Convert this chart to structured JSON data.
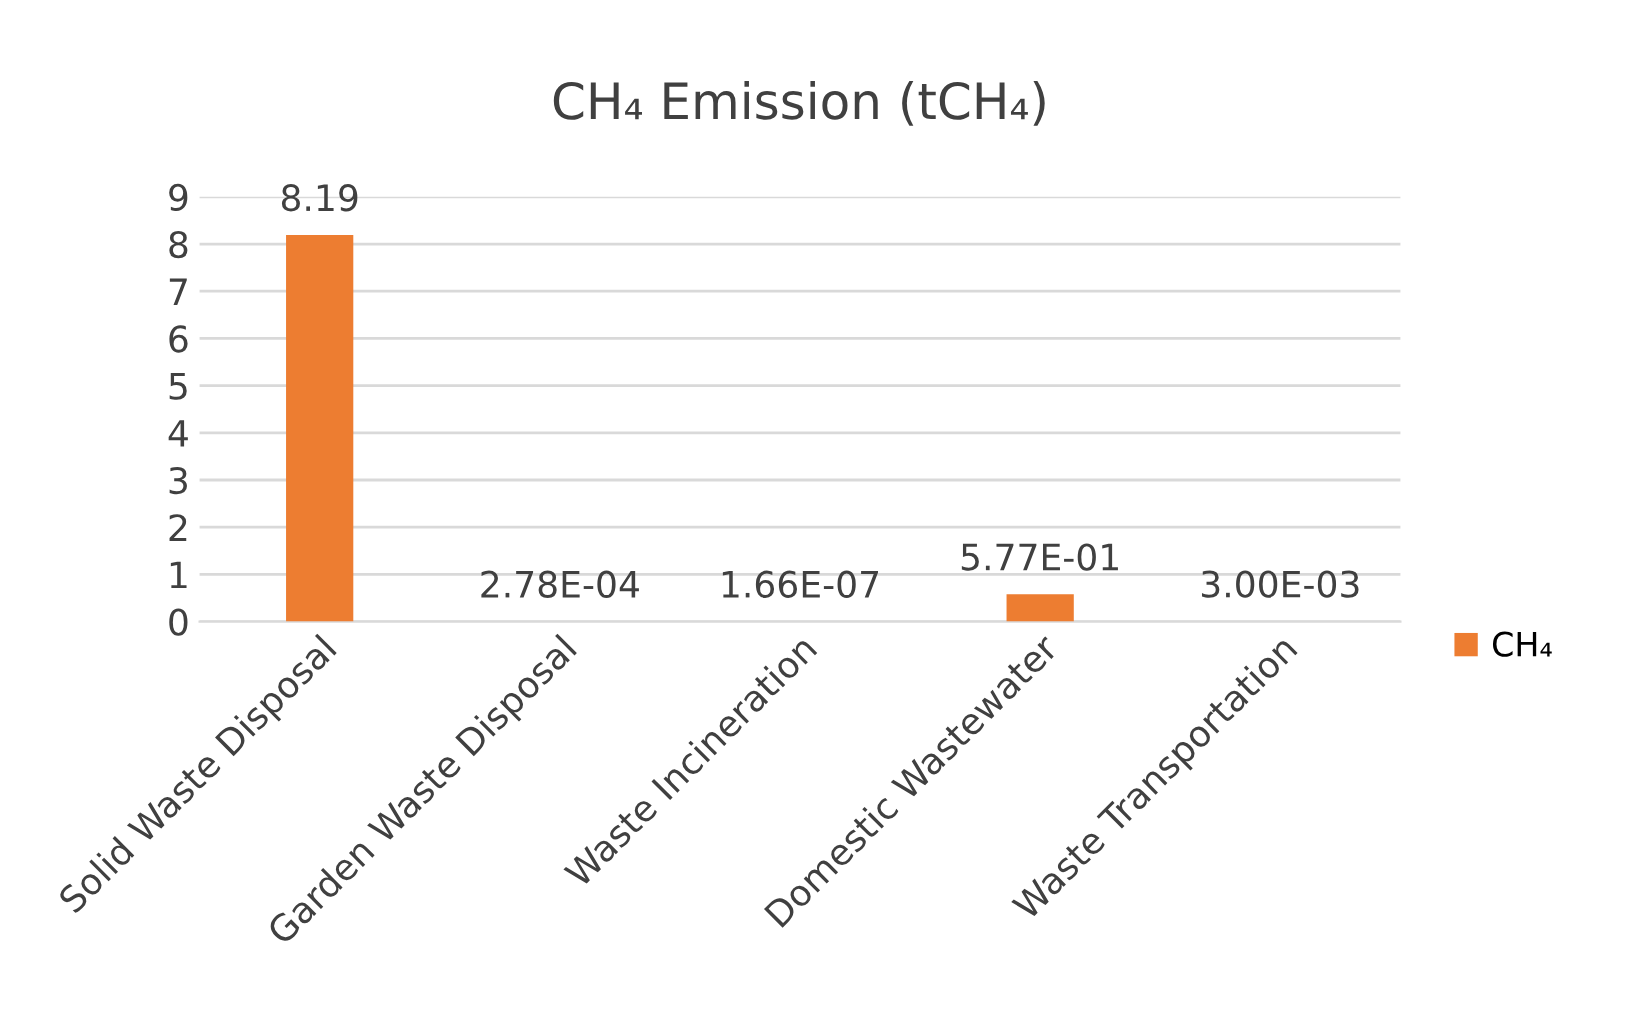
{
  "chart_data": {
    "type": "bar",
    "title": "CH₄ Emission (tCH₄)",
    "categories": [
      "Solid Waste Disposal",
      "Garden Waste Disposal",
      "Waste Incineration",
      "Domestic Wastewater",
      "Waste Transportation"
    ],
    "series": [
      {
        "name": "CH₄",
        "color": "#ed7d31",
        "values": [
          8.19,
          0.000278,
          1.66e-07,
          0.577,
          0.003
        ],
        "value_labels": [
          "8.19",
          "2.78E-04",
          "1.66E-07",
          "5.77E-01",
          "3.00E-03"
        ]
      }
    ],
    "ylim": [
      0,
      9
    ],
    "yticks": [
      0,
      1,
      2,
      3,
      4,
      5,
      6,
      7,
      8,
      9
    ],
    "grid": "y",
    "legend": "right"
  }
}
